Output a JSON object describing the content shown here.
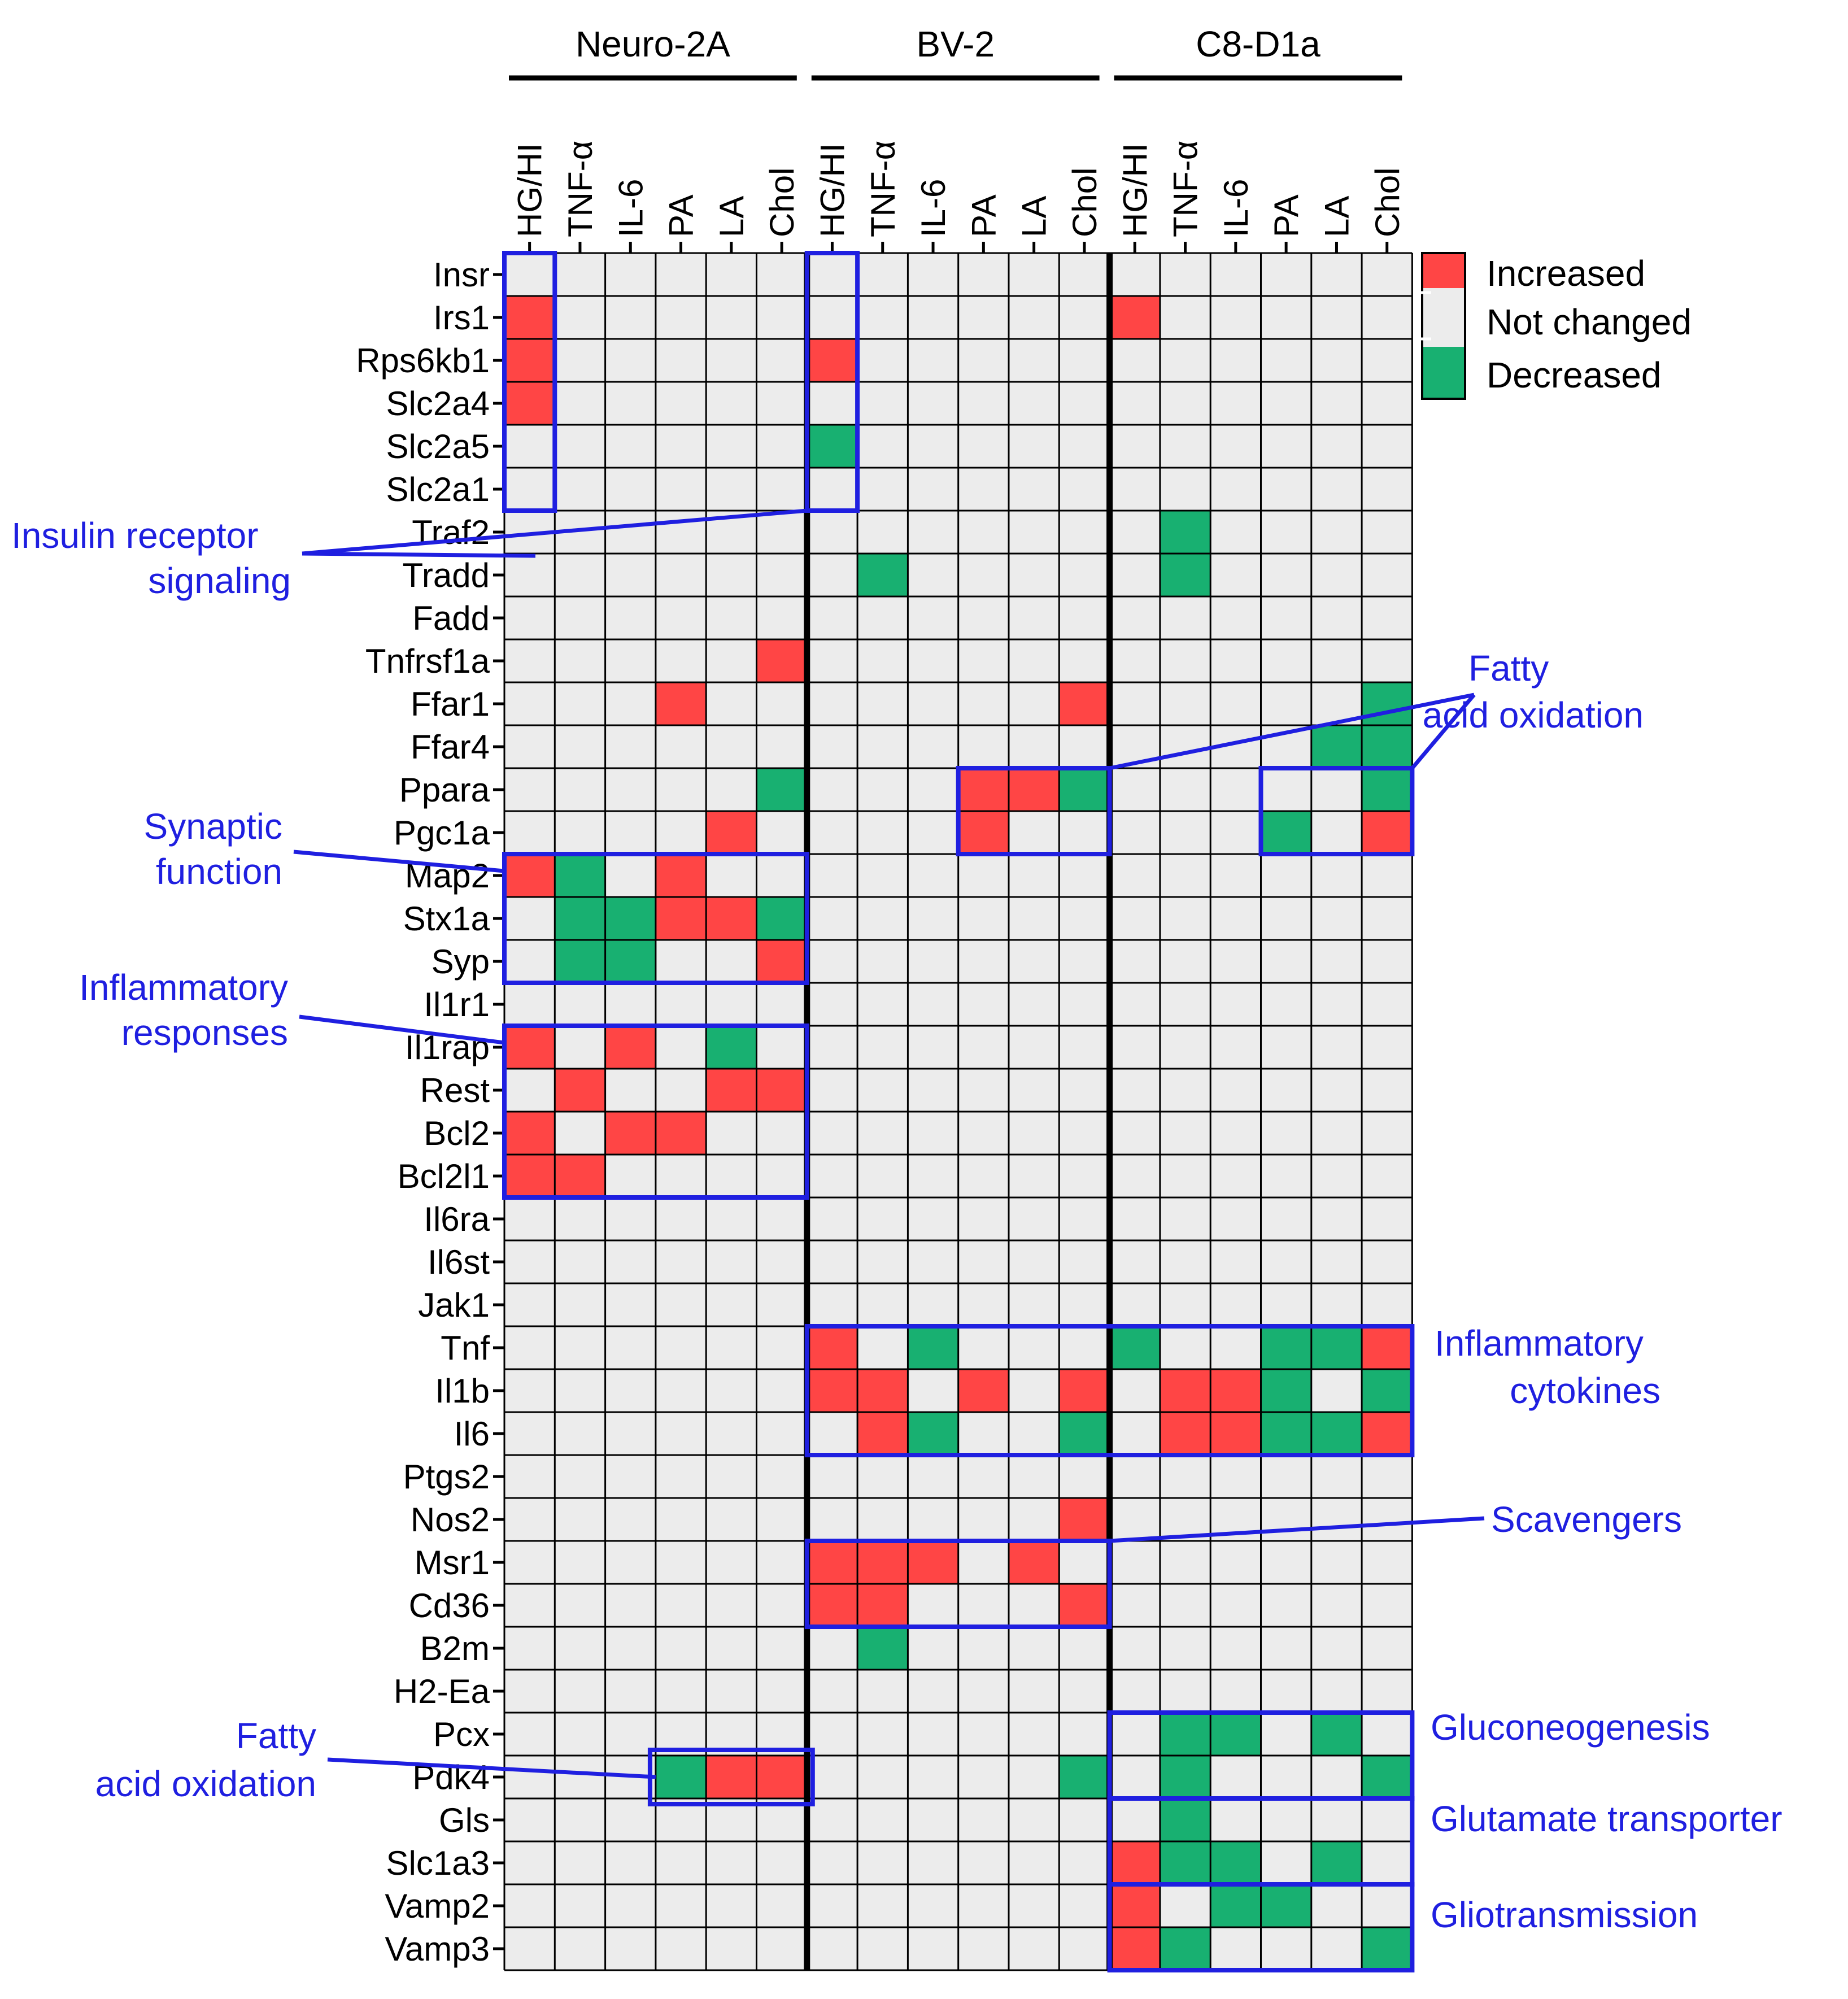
{
  "colors": {
    "increased": "#ff4545",
    "not_changed": "#ececec",
    "decreased": "#18b071",
    "annotation": "#1f1fe0",
    "grid": "#000000"
  },
  "legend": {
    "increased": "Increased",
    "not_changed": "Not changed",
    "decreased": "Decreased"
  },
  "chart_data": {
    "type": "heatmap",
    "encoding": {
      "1": "Increased",
      "0": "Not changed",
      "-1": "Decreased"
    },
    "groups": [
      {
        "name": "Neuro-2A",
        "columns": [
          "HG/HI",
          "TNF-α",
          "IL-6",
          "PA",
          "LA",
          "Chol"
        ]
      },
      {
        "name": "BV-2",
        "columns": [
          "HG/HI",
          "TNF-α",
          "IL-6",
          "PA",
          "LA",
          "Chol"
        ]
      },
      {
        "name": "C8-D1a",
        "columns": [
          "HG/HI",
          "TNF-α",
          "IL-6",
          "PA",
          "LA",
          "Chol"
        ]
      }
    ],
    "rows": [
      "Insr",
      "Irs1",
      "Rps6kb1",
      "Slc2a4",
      "Slc2a5",
      "Slc2a1",
      "Traf2",
      "Tradd",
      "Fadd",
      "Tnfrsf1a",
      "Ffar1",
      "Ffar4",
      "Ppara",
      "Pgc1a",
      "Map2",
      "Stx1a",
      "Syp",
      "Il1r1",
      "Il1rap",
      "Rest",
      "Bcl2",
      "Bcl2l1",
      "Il6ra",
      "Il6st",
      "Jak1",
      "Tnf",
      "Il1b",
      "Il6",
      "Ptgs2",
      "Nos2",
      "Msr1",
      "Cd36",
      "B2m",
      "H2-Ea",
      "Pcx",
      "Pdk4",
      "Gls",
      "Slc1a3",
      "Vamp2",
      "Vamp3"
    ],
    "values": [
      [
        0,
        0,
        0,
        0,
        0,
        0,
        0,
        0,
        0,
        0,
        0,
        0,
        0,
        0,
        0,
        0,
        0,
        0
      ],
      [
        1,
        0,
        0,
        0,
        0,
        0,
        0,
        0,
        0,
        0,
        0,
        0,
        1,
        0,
        0,
        0,
        0,
        0
      ],
      [
        1,
        0,
        0,
        0,
        0,
        0,
        1,
        0,
        0,
        0,
        0,
        0,
        0,
        0,
        0,
        0,
        0,
        0
      ],
      [
        1,
        0,
        0,
        0,
        0,
        0,
        0,
        0,
        0,
        0,
        0,
        0,
        0,
        0,
        0,
        0,
        0,
        0
      ],
      [
        0,
        0,
        0,
        0,
        0,
        0,
        -1,
        0,
        0,
        0,
        0,
        0,
        0,
        0,
        0,
        0,
        0,
        0
      ],
      [
        0,
        0,
        0,
        0,
        0,
        0,
        0,
        0,
        0,
        0,
        0,
        0,
        0,
        0,
        0,
        0,
        0,
        0
      ],
      [
        0,
        0,
        0,
        0,
        0,
        0,
        0,
        0,
        0,
        0,
        0,
        0,
        0,
        -1,
        0,
        0,
        0,
        0
      ],
      [
        0,
        0,
        0,
        0,
        0,
        0,
        0,
        -1,
        0,
        0,
        0,
        0,
        0,
        -1,
        0,
        0,
        0,
        0
      ],
      [
        0,
        0,
        0,
        0,
        0,
        0,
        0,
        0,
        0,
        0,
        0,
        0,
        0,
        0,
        0,
        0,
        0,
        0
      ],
      [
        0,
        0,
        0,
        0,
        0,
        1,
        0,
        0,
        0,
        0,
        0,
        0,
        0,
        0,
        0,
        0,
        0,
        0
      ],
      [
        0,
        0,
        0,
        1,
        0,
        0,
        0,
        0,
        0,
        0,
        0,
        1,
        0,
        0,
        0,
        0,
        0,
        -1
      ],
      [
        0,
        0,
        0,
        0,
        0,
        0,
        0,
        0,
        0,
        0,
        0,
        0,
        0,
        0,
        0,
        0,
        -1,
        -1
      ],
      [
        0,
        0,
        0,
        0,
        0,
        -1,
        0,
        0,
        0,
        1,
        1,
        -1,
        0,
        0,
        0,
        0,
        0,
        -1
      ],
      [
        0,
        0,
        0,
        0,
        1,
        0,
        0,
        0,
        0,
        1,
        0,
        0,
        0,
        0,
        0,
        -1,
        0,
        1
      ],
      [
        1,
        -1,
        0,
        1,
        0,
        0,
        0,
        0,
        0,
        0,
        0,
        0,
        0,
        0,
        0,
        0,
        0,
        0
      ],
      [
        0,
        -1,
        -1,
        1,
        1,
        -1,
        0,
        0,
        0,
        0,
        0,
        0,
        0,
        0,
        0,
        0,
        0,
        0
      ],
      [
        0,
        -1,
        -1,
        0,
        0,
        1,
        0,
        0,
        0,
        0,
        0,
        0,
        0,
        0,
        0,
        0,
        0,
        0
      ],
      [
        0,
        0,
        0,
        0,
        0,
        0,
        0,
        0,
        0,
        0,
        0,
        0,
        0,
        0,
        0,
        0,
        0,
        0
      ],
      [
        1,
        0,
        1,
        0,
        -1,
        0,
        0,
        0,
        0,
        0,
        0,
        0,
        0,
        0,
        0,
        0,
        0,
        0
      ],
      [
        0,
        1,
        0,
        0,
        1,
        1,
        0,
        0,
        0,
        0,
        0,
        0,
        0,
        0,
        0,
        0,
        0,
        0
      ],
      [
        1,
        0,
        1,
        1,
        0,
        0,
        0,
        0,
        0,
        0,
        0,
        0,
        0,
        0,
        0,
        0,
        0,
        0
      ],
      [
        1,
        1,
        0,
        0,
        0,
        0,
        0,
        0,
        0,
        0,
        0,
        0,
        0,
        0,
        0,
        0,
        0,
        0
      ],
      [
        0,
        0,
        0,
        0,
        0,
        0,
        0,
        0,
        0,
        0,
        0,
        0,
        0,
        0,
        0,
        0,
        0,
        0
      ],
      [
        0,
        0,
        0,
        0,
        0,
        0,
        0,
        0,
        0,
        0,
        0,
        0,
        0,
        0,
        0,
        0,
        0,
        0
      ],
      [
        0,
        0,
        0,
        0,
        0,
        0,
        0,
        0,
        0,
        0,
        0,
        0,
        0,
        0,
        0,
        0,
        0,
        0
      ],
      [
        0,
        0,
        0,
        0,
        0,
        0,
        1,
        0,
        -1,
        0,
        0,
        0,
        -1,
        0,
        0,
        -1,
        -1,
        1
      ],
      [
        0,
        0,
        0,
        0,
        0,
        0,
        1,
        1,
        0,
        1,
        0,
        1,
        0,
        1,
        1,
        -1,
        0,
        -1
      ],
      [
        0,
        0,
        0,
        0,
        0,
        0,
        0,
        1,
        -1,
        0,
        0,
        -1,
        0,
        1,
        1,
        -1,
        -1,
        1
      ],
      [
        0,
        0,
        0,
        0,
        0,
        0,
        0,
        0,
        0,
        0,
        0,
        0,
        0,
        0,
        0,
        0,
        0,
        0
      ],
      [
        0,
        0,
        0,
        0,
        0,
        0,
        0,
        0,
        0,
        0,
        0,
        1,
        0,
        0,
        0,
        0,
        0,
        0
      ],
      [
        0,
        0,
        0,
        0,
        0,
        0,
        1,
        1,
        1,
        0,
        1,
        0,
        0,
        0,
        0,
        0,
        0,
        0
      ],
      [
        0,
        0,
        0,
        0,
        0,
        0,
        1,
        1,
        0,
        0,
        0,
        1,
        0,
        0,
        0,
        0,
        0,
        0
      ],
      [
        0,
        0,
        0,
        0,
        0,
        0,
        0,
        -1,
        0,
        0,
        0,
        0,
        0,
        0,
        0,
        0,
        0,
        0
      ],
      [
        0,
        0,
        0,
        0,
        0,
        0,
        0,
        0,
        0,
        0,
        0,
        0,
        0,
        0,
        0,
        0,
        0,
        0
      ],
      [
        0,
        0,
        0,
        0,
        0,
        0,
        0,
        0,
        0,
        0,
        0,
        0,
        0,
        -1,
        -1,
        0,
        -1,
        0
      ],
      [
        0,
        0,
        0,
        -1,
        1,
        1,
        0,
        0,
        0,
        0,
        0,
        -1,
        0,
        -1,
        0,
        0,
        0,
        -1
      ],
      [
        0,
        0,
        0,
        0,
        0,
        0,
        0,
        0,
        0,
        0,
        0,
        0,
        0,
        -1,
        0,
        0,
        0,
        0
      ],
      [
        0,
        0,
        0,
        0,
        0,
        0,
        0,
        0,
        0,
        0,
        0,
        0,
        1,
        -1,
        -1,
        0,
        -1,
        0
      ],
      [
        0,
        0,
        0,
        0,
        0,
        0,
        0,
        0,
        0,
        0,
        0,
        0,
        1,
        0,
        -1,
        -1,
        0,
        0
      ],
      [
        0,
        0,
        0,
        0,
        0,
        0,
        0,
        0,
        0,
        0,
        0,
        0,
        1,
        -1,
        0,
        0,
        0,
        -1
      ]
    ],
    "annotations": [
      {
        "label": "Insulin receptor signaling",
        "boxes": [
          {
            "rows": [
              0,
              5
            ],
            "cols": [
              0,
              0
            ]
          },
          {
            "rows": [
              0,
              5
            ],
            "cols": [
              6,
              6
            ]
          }
        ]
      },
      {
        "label": "Fatty acid oxidation",
        "boxes": [
          {
            "rows": [
              12,
              13
            ],
            "cols": [
              9,
              11
            ]
          },
          {
            "rows": [
              12,
              13
            ],
            "cols": [
              15,
              17
            ]
          }
        ]
      },
      {
        "label": "Synaptic function",
        "boxes": [
          {
            "rows": [
              14,
              16
            ],
            "cols": [
              0,
              5
            ]
          }
        ]
      },
      {
        "label": "Inflammatory responses",
        "boxes": [
          {
            "rows": [
              18,
              21
            ],
            "cols": [
              0,
              5
            ]
          }
        ]
      },
      {
        "label": "Inflammatory cytokines",
        "boxes": [
          {
            "rows": [
              25,
              27
            ],
            "cols": [
              6,
              17
            ]
          }
        ]
      },
      {
        "label": "Scavengers",
        "boxes": [
          {
            "rows": [
              30,
              31
            ],
            "cols": [
              6,
              11
            ]
          }
        ]
      },
      {
        "label": "Fatty acid oxidation",
        "boxes": [
          {
            "rows": [
              35,
              35
            ],
            "cols": [
              3,
              5
            ]
          }
        ]
      },
      {
        "label": "Gluconeogenesis",
        "boxes": [
          {
            "rows": [
              34,
              35
            ],
            "cols": [
              12,
              17
            ]
          }
        ]
      },
      {
        "label": "Glutamate transporter",
        "boxes": [
          {
            "rows": [
              36,
              37
            ],
            "cols": [
              12,
              17
            ]
          }
        ]
      },
      {
        "label": "Gliotransmission",
        "boxes": [
          {
            "rows": [
              38,
              39
            ],
            "cols": [
              12,
              17
            ]
          }
        ]
      }
    ]
  }
}
